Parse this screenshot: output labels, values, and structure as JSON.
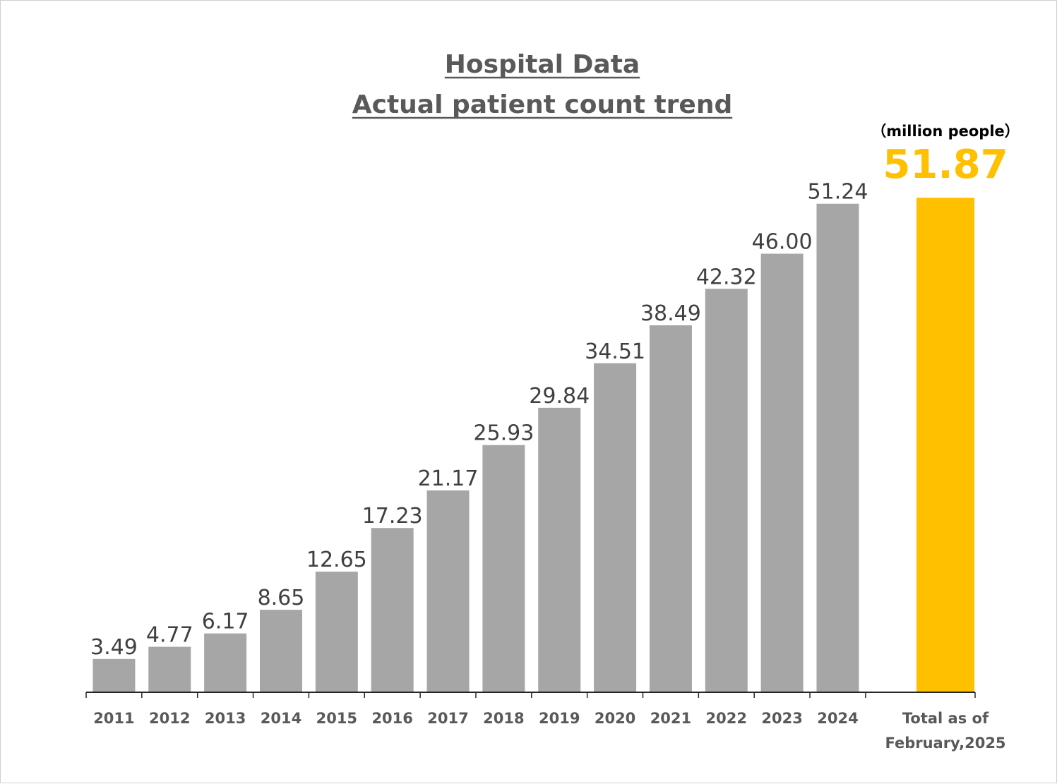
{
  "chart_data": {
    "type": "bar",
    "title": "Hospital Data",
    "subtitle": "Actual patient count trend",
    "unit_label": "（million people）",
    "categories": [
      "2011",
      "2012",
      "2013",
      "2014",
      "2015",
      "2016",
      "2017",
      "2018",
      "2019",
      "2020",
      "2021",
      "2022",
      "2023",
      "2024"
    ],
    "values": [
      3.49,
      4.77,
      6.17,
      8.65,
      12.65,
      17.23,
      21.17,
      25.93,
      29.84,
      34.51,
      38.49,
      42.32,
      46.0,
      51.24
    ],
    "value_labels": [
      "3.49",
      "4.77",
      "6.17",
      "8.65",
      "12.65",
      "17.23",
      "21.17",
      "25.93",
      "29.84",
      "34.51",
      "38.49",
      "42.32",
      "46.00",
      "51.24"
    ],
    "total": {
      "category_lines": [
        "Total as of",
        "February,2025"
      ],
      "value": 51.87,
      "value_label": "51.87"
    },
    "ylim": [
      0,
      55
    ],
    "grid": false,
    "legend": "none",
    "colors": {
      "bar": "#a6a6a6",
      "total_bar": "#ffc000",
      "axis": "#262626"
    }
  }
}
